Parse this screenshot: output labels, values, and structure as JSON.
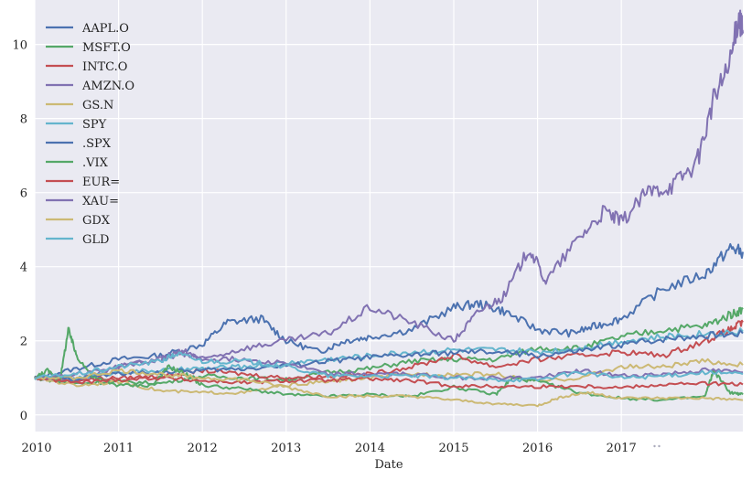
{
  "chart_data": {
    "type": "line",
    "title": "",
    "xlabel": "Date",
    "ylabel": "",
    "xlim": [
      2010.0,
      2018.45
    ],
    "ylim": [
      -0.45,
      11.2
    ],
    "x_ticks": [
      2010,
      2011,
      2012,
      2013,
      2014,
      2015,
      2016,
      2017
    ],
    "x_tick_labels": [
      "2010",
      "2011",
      "2012",
      "2013",
      "2014",
      "2015",
      "2016",
      "2017"
    ],
    "y_ticks": [
      0,
      2,
      4,
      6,
      8,
      10
    ],
    "y_tick_labels": [
      "0",
      "2",
      "4",
      "6",
      "8",
      "10"
    ],
    "grid": true,
    "legend_position": "top-left",
    "series": [
      {
        "name": "AAPL.O",
        "color": "#4c72b0",
        "x": [
          2010,
          2010.5,
          2011,
          2011.5,
          2012,
          2012.3,
          2012.7,
          2013,
          2013.4,
          2013.7,
          2014,
          2014.5,
          2015,
          2015.3,
          2015.6,
          2016,
          2016.4,
          2016.7,
          2017,
          2017.5,
          2018,
          2018.3,
          2018.45
        ],
        "values": [
          1.0,
          1.25,
          1.5,
          1.6,
          1.9,
          2.5,
          2.6,
          2.0,
          1.7,
          2.0,
          2.1,
          2.3,
          2.9,
          3.0,
          2.8,
          2.3,
          2.2,
          2.4,
          2.6,
          3.4,
          3.8,
          4.5,
          4.4
        ]
      },
      {
        "name": "MSFT.O",
        "color": "#55a868",
        "x": [
          2010,
          2010.5,
          2011,
          2011.5,
          2012,
          2012.5,
          2013,
          2013.5,
          2014,
          2014.5,
          2015,
          2015.5,
          2016,
          2016.5,
          2017,
          2017.5,
          2018,
          2018.3,
          2018.45
        ],
        "values": [
          1.0,
          0.85,
          0.9,
          0.85,
          1.05,
          1.0,
          0.95,
          1.15,
          1.25,
          1.45,
          1.5,
          1.5,
          1.8,
          1.8,
          2.1,
          2.3,
          2.4,
          2.7,
          2.85
        ]
      },
      {
        "name": "INTC.O",
        "color": "#c44e52",
        "x": [
          2010,
          2010.5,
          2011,
          2011.5,
          2012,
          2012.5,
          2013,
          2013.5,
          2014,
          2014.5,
          2015,
          2015.5,
          2016,
          2016.5,
          2017,
          2017.5,
          2018,
          2018.3,
          2018.45
        ],
        "values": [
          1.0,
          0.95,
          1.0,
          1.05,
          1.2,
          1.1,
          1.0,
          1.05,
          1.1,
          1.3,
          1.6,
          1.3,
          1.5,
          1.6,
          1.7,
          1.6,
          2.0,
          2.3,
          2.5
        ]
      },
      {
        "name": "AMZN.O",
        "color": "#8172b2",
        "x": [
          2010,
          2010.5,
          2011,
          2011.5,
          2011.8,
          2012,
          2012.5,
          2013,
          2013.5,
          2014,
          2014.5,
          2015,
          2015.3,
          2015.6,
          2015.9,
          2016.1,
          2016.5,
          2016.8,
          2017,
          2017.3,
          2017.6,
          2017.9,
          2018.1,
          2018.3,
          2018.4,
          2018.45
        ],
        "values": [
          1.0,
          0.95,
          1.3,
          1.5,
          1.7,
          1.5,
          1.8,
          2.0,
          2.2,
          2.9,
          2.5,
          2.0,
          2.8,
          3.2,
          4.5,
          3.6,
          4.8,
          5.5,
          5.2,
          6.0,
          6.2,
          6.8,
          8.5,
          9.5,
          10.8,
          10.3
        ]
      },
      {
        "name": "GS.N",
        "color": "#ccb974",
        "x": [
          2010,
          2010.5,
          2011,
          2011.5,
          2012,
          2012.5,
          2013,
          2013.5,
          2014,
          2014.5,
          2015,
          2015.5,
          2016,
          2016.5,
          2017,
          2017.5,
          2018,
          2018.45
        ],
        "values": [
          1.0,
          0.8,
          0.9,
          0.65,
          0.6,
          0.6,
          0.8,
          0.9,
          1.0,
          1.1,
          1.1,
          1.1,
          0.9,
          1.0,
          1.3,
          1.3,
          1.45,
          1.35
        ]
      },
      {
        "name": "SPY",
        "color": "#64b5cd",
        "x": [
          2010,
          2010.5,
          2011,
          2011.5,
          2012,
          2012.5,
          2013,
          2013.5,
          2014,
          2014.5,
          2015,
          2015.5,
          2016,
          2016.5,
          2017,
          2017.5,
          2018,
          2018.45
        ],
        "values": [
          1.0,
          1.0,
          1.15,
          1.2,
          1.25,
          1.3,
          1.4,
          1.5,
          1.6,
          1.7,
          1.75,
          1.75,
          1.7,
          1.8,
          2.0,
          2.1,
          2.2,
          2.25
        ]
      },
      {
        "name": ".SPX",
        "color": "#4c72b0",
        "x": [
          2010,
          2010.5,
          2011,
          2011.5,
          2012,
          2012.5,
          2013,
          2013.5,
          2014,
          2014.5,
          2015,
          2015.5,
          2016,
          2016.5,
          2017,
          2017.5,
          2018,
          2018.45
        ],
        "values": [
          1.0,
          0.98,
          1.12,
          1.15,
          1.2,
          1.25,
          1.33,
          1.45,
          1.55,
          1.62,
          1.68,
          1.7,
          1.6,
          1.72,
          1.9,
          2.05,
          2.15,
          2.2
        ]
      },
      {
        "name": ".VIX",
        "color": "#55a868",
        "x": [
          2010,
          2010.15,
          2010.3,
          2010.4,
          2010.5,
          2010.7,
          2011,
          2011.4,
          2011.6,
          2011.8,
          2012,
          2012.5,
          2013,
          2013.5,
          2014,
          2014.5,
          2015,
          2015.5,
          2015.7,
          2016,
          2016.5,
          2017,
          2017.5,
          2018,
          2018.1,
          2018.3,
          2018.45
        ],
        "values": [
          1.0,
          1.2,
          0.9,
          2.3,
          1.6,
          1.0,
          0.8,
          0.8,
          1.3,
          1.1,
          0.8,
          0.7,
          0.55,
          0.5,
          0.55,
          0.5,
          0.75,
          0.55,
          1.0,
          0.9,
          0.6,
          0.45,
          0.4,
          0.5,
          1.2,
          0.6,
          0.55
        ]
      },
      {
        "name": "EUR=",
        "color": "#c44e52",
        "x": [
          2010,
          2010.5,
          2011,
          2011.5,
          2012,
          2012.5,
          2013,
          2013.5,
          2014,
          2014.5,
          2015,
          2015.5,
          2016,
          2016.5,
          2017,
          2017.5,
          2018,
          2018.45
        ],
        "values": [
          1.0,
          0.87,
          0.95,
          1.0,
          0.92,
          0.87,
          0.92,
          0.93,
          0.97,
          0.92,
          0.78,
          0.77,
          0.76,
          0.78,
          0.74,
          0.82,
          0.85,
          0.82
        ]
      },
      {
        "name": "XAU=",
        "color": "#8172b2",
        "x": [
          2010,
          2010.5,
          2011,
          2011.5,
          2011.7,
          2012,
          2012.5,
          2013,
          2013.5,
          2014,
          2014.5,
          2015,
          2015.5,
          2016,
          2016.5,
          2017,
          2017.5,
          2018,
          2018.45
        ],
        "values": [
          1.0,
          1.1,
          1.3,
          1.5,
          1.7,
          1.5,
          1.5,
          1.4,
          1.1,
          1.1,
          1.1,
          1.0,
          1.0,
          1.0,
          1.2,
          1.05,
          1.1,
          1.2,
          1.15
        ]
      },
      {
        "name": "GDX",
        "color": "#ccb974",
        "x": [
          2010,
          2010.5,
          2011,
          2011.5,
          2012,
          2012.5,
          2013,
          2013.5,
          2014,
          2014.5,
          2015,
          2015.5,
          2016,
          2016.3,
          2016.6,
          2017,
          2017.5,
          2018,
          2018.45
        ],
        "values": [
          1.0,
          1.0,
          1.2,
          1.1,
          1.0,
          0.95,
          0.75,
          0.5,
          0.5,
          0.5,
          0.4,
          0.3,
          0.25,
          0.5,
          0.6,
          0.45,
          0.45,
          0.45,
          0.4
        ]
      },
      {
        "name": "GLD",
        "color": "#64b5cd",
        "x": [
          2010,
          2010.5,
          2011,
          2011.5,
          2011.7,
          2012,
          2012.5,
          2013,
          2013.5,
          2014,
          2014.5,
          2015,
          2015.5,
          2016,
          2016.5,
          2017,
          2017.5,
          2018,
          2018.45
        ],
        "values": [
          1.0,
          1.1,
          1.3,
          1.45,
          1.65,
          1.45,
          1.45,
          1.3,
          1.05,
          1.05,
          1.05,
          1.0,
          0.95,
          0.95,
          1.15,
          1.0,
          1.05,
          1.15,
          1.1
        ]
      }
    ]
  },
  "watermark": {
    "text": "逆享会",
    "icon": "wechat-icon"
  }
}
